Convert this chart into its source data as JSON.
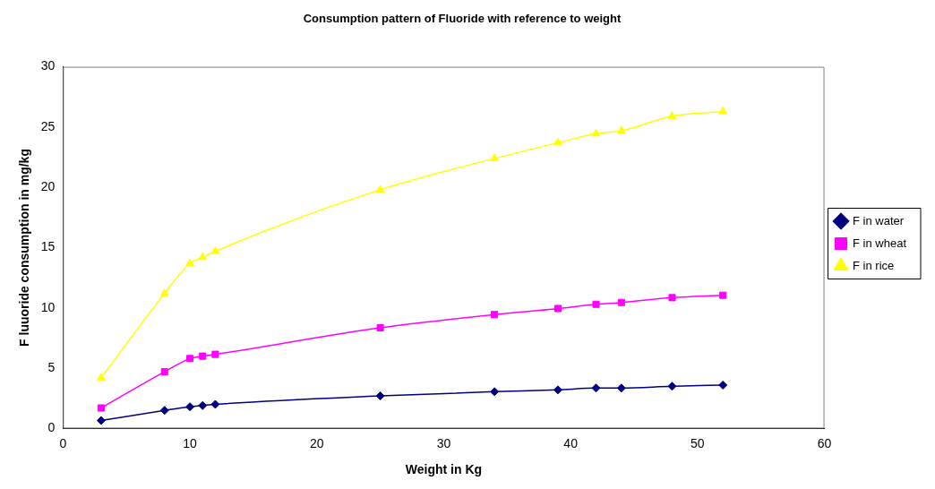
{
  "chart_data": {
    "type": "line",
    "title": "Consumption pattern of Fluoride with reference to weight",
    "xlabel": "Weight in Kg",
    "ylabel": "F luuoride consumption in mg/kg",
    "x": [
      3,
      8,
      10,
      11,
      12,
      25,
      34,
      39,
      42,
      44,
      48,
      52
    ],
    "series": [
      {
        "name": "F in water",
        "color": "#000080",
        "marker": "diamond",
        "values": [
          0.66,
          1.5,
          1.8,
          1.9,
          2.0,
          2.7,
          3.05,
          3.2,
          3.35,
          3.35,
          3.5,
          3.6
        ]
      },
      {
        "name": "F in wheat",
        "color": "#ff00ff",
        "marker": "square",
        "values": [
          1.7,
          4.7,
          5.8,
          6.0,
          6.15,
          8.35,
          9.45,
          9.95,
          10.3,
          10.45,
          10.85,
          11.05
        ]
      },
      {
        "name": "F in rice",
        "color": "#ffff00",
        "marker": "triangle",
        "values": [
          4.2,
          11.2,
          13.7,
          14.2,
          14.7,
          19.8,
          22.4,
          23.7,
          24.45,
          24.7,
          25.9,
          26.3
        ]
      }
    ],
    "xlim": [
      0,
      60
    ],
    "xticks": [
      0,
      10,
      20,
      30,
      40,
      50,
      60
    ],
    "ylim": [
      0,
      30
    ],
    "yticks": [
      0,
      5,
      10,
      15,
      20,
      25,
      30
    ],
    "grid": false,
    "legend": "right"
  }
}
